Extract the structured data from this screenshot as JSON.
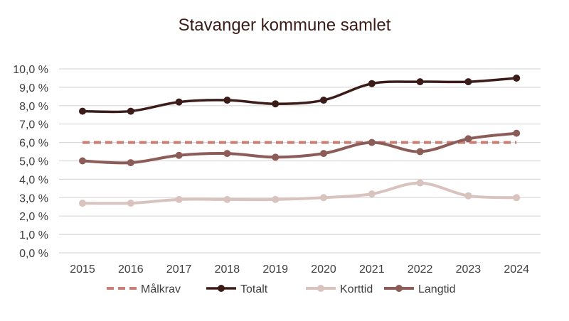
{
  "chart_data": {
    "type": "line",
    "title": "Stavanger kommune samlet",
    "xlabel": "",
    "ylabel": "",
    "categories": [
      "2015",
      "2016",
      "2017",
      "2018",
      "2019",
      "2020",
      "2021",
      "2022",
      "2023",
      "2024"
    ],
    "ylim": [
      0,
      10
    ],
    "yticks": [
      "0,0 %",
      "1,0 %",
      "2,0 %",
      "3,0 %",
      "4,0 %",
      "5,0 %",
      "6,0 %",
      "7,0 %",
      "8,0 %",
      "9,0 %",
      "10,0 %"
    ],
    "grid": true,
    "legend_position": "bottom",
    "series": [
      {
        "name": "Målkrav",
        "color": "#c97f76",
        "style": "dashed",
        "markers": false,
        "values": [
          6.0,
          6.0,
          6.0,
          6.0,
          6.0,
          6.0,
          6.0,
          6.0,
          6.0,
          6.0
        ]
      },
      {
        "name": "Totalt",
        "color": "#3b1c18",
        "style": "solid",
        "markers": true,
        "values": [
          7.7,
          7.7,
          8.2,
          8.3,
          8.1,
          8.3,
          9.2,
          9.3,
          9.3,
          9.5
        ]
      },
      {
        "name": "Korttid",
        "color": "#d9c3bf",
        "style": "solid",
        "markers": true,
        "values": [
          2.7,
          2.7,
          2.9,
          2.9,
          2.9,
          3.0,
          3.2,
          3.8,
          3.1,
          3.0
        ]
      },
      {
        "name": "Langtid",
        "color": "#8c5d58",
        "style": "solid",
        "markers": true,
        "values": [
          5.0,
          4.9,
          5.3,
          5.4,
          5.2,
          5.4,
          6.0,
          5.5,
          6.2,
          6.5
        ]
      }
    ]
  }
}
